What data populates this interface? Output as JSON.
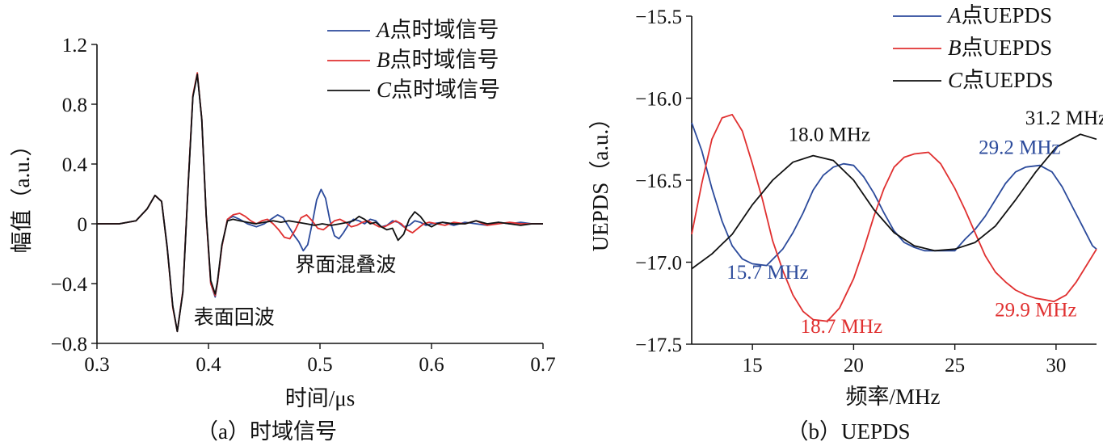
{
  "chart_data": [
    {
      "type": "line",
      "caption": "（a）时域信号",
      "xlabel": "时间/μs",
      "ylabel": "幅值（a.u.）",
      "xlim": [
        0.3,
        0.7
      ],
      "ylim": [
        -0.8,
        1.2
      ],
      "x_ticks": [
        "0.3",
        "0.4",
        "0.5",
        "0.6",
        "0.7"
      ],
      "y_ticks": [
        "−0.8",
        "−0.4",
        "0",
        "0.4",
        "0.8",
        "1.2"
      ],
      "x_tick_values": [
        0.3,
        0.4,
        0.5,
        0.6,
        0.7
      ],
      "y_tick_values": [
        -0.8,
        -0.4,
        0,
        0.4,
        0.8,
        1.2
      ],
      "legend_position": "top-right",
      "series": [
        {
          "letter": "A",
          "suffix": "点时域信号",
          "color": "#2b4a9b",
          "x": [
            0.3,
            0.32,
            0.335,
            0.345,
            0.352,
            0.358,
            0.363,
            0.368,
            0.372,
            0.377,
            0.382,
            0.386,
            0.39,
            0.394,
            0.398,
            0.402,
            0.406,
            0.408,
            0.412,
            0.417,
            0.422,
            0.428,
            0.435,
            0.443,
            0.45,
            0.456,
            0.462,
            0.467,
            0.472,
            0.477,
            0.481,
            0.485,
            0.489,
            0.493,
            0.497,
            0.501,
            0.505,
            0.509,
            0.513,
            0.517,
            0.521,
            0.526,
            0.53,
            0.535,
            0.54,
            0.545,
            0.55,
            0.555,
            0.56,
            0.565,
            0.57,
            0.575,
            0.58,
            0.585,
            0.59,
            0.595,
            0.6,
            0.61,
            0.62,
            0.63,
            0.64,
            0.65,
            0.66,
            0.67,
            0.68,
            0.69,
            0.7
          ],
          "y": [
            0,
            0,
            0.02,
            0.1,
            0.19,
            0.15,
            -0.15,
            -0.55,
            -0.72,
            -0.45,
            0.3,
            0.85,
            1.0,
            0.7,
            0.05,
            -0.4,
            -0.49,
            -0.4,
            -0.15,
            0.03,
            0.05,
            0.03,
            0.0,
            -0.02,
            0.0,
            0.03,
            0.06,
            0.04,
            -0.02,
            -0.08,
            -0.12,
            -0.18,
            -0.14,
            0.0,
            0.16,
            0.23,
            0.17,
            0.02,
            -0.08,
            -0.1,
            -0.06,
            0.0,
            0.03,
            0.02,
            0.0,
            0.03,
            0.02,
            -0.02,
            -0.01,
            0.02,
            0.01,
            -0.02,
            -0.01,
            0.02,
            0.01,
            -0.01,
            0.0,
            0.01,
            -0.01,
            0.01,
            0.0,
            -0.01,
            0.01,
            0.0,
            0.01,
            0.0,
            0.0
          ]
        },
        {
          "letter": "B",
          "suffix": "点时域信号",
          "color": "#e03030",
          "x": [
            0.3,
            0.32,
            0.335,
            0.345,
            0.352,
            0.358,
            0.363,
            0.368,
            0.372,
            0.377,
            0.382,
            0.386,
            0.39,
            0.394,
            0.398,
            0.402,
            0.406,
            0.408,
            0.412,
            0.417,
            0.422,
            0.428,
            0.433,
            0.438,
            0.443,
            0.448,
            0.453,
            0.458,
            0.463,
            0.468,
            0.473,
            0.478,
            0.483,
            0.488,
            0.493,
            0.498,
            0.503,
            0.508,
            0.513,
            0.518,
            0.523,
            0.528,
            0.533,
            0.538,
            0.543,
            0.548,
            0.553,
            0.558,
            0.563,
            0.568,
            0.573,
            0.578,
            0.583,
            0.588,
            0.593,
            0.598,
            0.605,
            0.612,
            0.62,
            0.63,
            0.64,
            0.65,
            0.66,
            0.67,
            0.68,
            0.69,
            0.7
          ],
          "y": [
            0,
            0,
            0.02,
            0.1,
            0.19,
            0.15,
            -0.16,
            -0.56,
            -0.72,
            -0.45,
            0.3,
            0.86,
            1.01,
            0.7,
            0.05,
            -0.4,
            -0.48,
            -0.4,
            -0.15,
            0.03,
            0.06,
            0.07,
            0.05,
            0.02,
            0.0,
            0.02,
            0.03,
            0.0,
            -0.04,
            -0.09,
            -0.1,
            -0.04,
            0.04,
            0.06,
            0.02,
            -0.03,
            -0.04,
            -0.01,
            0.02,
            0.03,
            0.01,
            -0.02,
            -0.01,
            0.01,
            0.02,
            0.0,
            -0.02,
            -0.02,
            0.0,
            0.02,
            0.0,
            -0.04,
            -0.06,
            -0.03,
            0.0,
            0.01,
            0.0,
            -0.01,
            0.01,
            0.0,
            0.02,
            -0.01,
            0.0,
            0.01,
            0.0,
            0.0,
            0.0
          ]
        },
        {
          "letter": "C",
          "suffix": "点时域信号",
          "color": "#111111",
          "x": [
            0.3,
            0.32,
            0.335,
            0.345,
            0.352,
            0.358,
            0.363,
            0.368,
            0.372,
            0.377,
            0.382,
            0.386,
            0.39,
            0.394,
            0.398,
            0.402,
            0.406,
            0.408,
            0.412,
            0.417,
            0.422,
            0.428,
            0.435,
            0.442,
            0.45,
            0.458,
            0.465,
            0.472,
            0.48,
            0.488,
            0.495,
            0.502,
            0.51,
            0.518,
            0.525,
            0.53,
            0.535,
            0.54,
            0.545,
            0.55,
            0.555,
            0.56,
            0.565,
            0.57,
            0.575,
            0.58,
            0.585,
            0.59,
            0.595,
            0.6,
            0.605,
            0.61,
            0.62,
            0.63,
            0.64,
            0.65,
            0.66,
            0.67,
            0.68,
            0.69,
            0.7
          ],
          "y": [
            0,
            0,
            0.02,
            0.1,
            0.19,
            0.15,
            -0.16,
            -0.55,
            -0.72,
            -0.46,
            0.29,
            0.85,
            1.0,
            0.7,
            0.06,
            -0.38,
            -0.47,
            -0.39,
            -0.14,
            0.02,
            0.03,
            0.02,
            0.01,
            0.0,
            0.01,
            0.02,
            0.01,
            0.02,
            0.01,
            0.0,
            -0.01,
            0.0,
            -0.01,
            0.0,
            0.01,
            0.02,
            0.05,
            0.03,
            0.0,
            0.01,
            -0.02,
            -0.04,
            -0.03,
            -0.11,
            -0.07,
            0.03,
            0.08,
            0.05,
            0.0,
            -0.02,
            0.0,
            0.01,
            0.0,
            0.0,
            0.02,
            0.0,
            0.01,
            0.0,
            -0.01,
            0.0,
            0.0
          ]
        }
      ],
      "annotations": [
        {
          "text": "界面混叠波",
          "x": 0.523,
          "y": -0.32
        },
        {
          "text": "表面回波",
          "x": 0.423,
          "y": -0.67
        }
      ]
    },
    {
      "type": "line",
      "caption": "（b）UEPDS",
      "xlabel": "频率/MHz",
      "ylabel": "UEPDS（a.u.）",
      "xlim": [
        12,
        32
      ],
      "ylim": [
        -17.5,
        -15.5
      ],
      "x_ticks": [
        "15",
        "20",
        "25",
        "30"
      ],
      "y_ticks": [
        "−17.5",
        "−17.0",
        "−16.5",
        "−16.0",
        "−15.5"
      ],
      "x_tick_values": [
        15,
        20,
        25,
        30
      ],
      "y_tick_values": [
        -17.5,
        -17.0,
        -16.5,
        -16.0,
        -15.5
      ],
      "legend_position": "top-right",
      "series": [
        {
          "letter": "A",
          "suffix": "点UEPDS",
          "color": "#2b4a9b",
          "x": [
            12,
            12.5,
            13,
            13.5,
            14,
            14.5,
            15,
            15.7,
            16.5,
            17,
            17.5,
            18,
            18.5,
            19,
            19.5,
            20,
            20.5,
            21,
            21.5,
            22,
            22.5,
            23,
            23.5,
            24,
            24.5,
            25,
            25.5,
            26,
            26.5,
            27,
            27.5,
            28,
            28.5,
            29.2,
            29.8,
            30.3,
            30.8,
            31.3,
            31.8,
            32
          ],
          "y": [
            -16.15,
            -16.32,
            -16.55,
            -16.75,
            -16.9,
            -16.98,
            -17.01,
            -17.02,
            -16.92,
            -16.82,
            -16.7,
            -16.56,
            -16.47,
            -16.42,
            -16.4,
            -16.41,
            -16.48,
            -16.58,
            -16.7,
            -16.81,
            -16.88,
            -16.91,
            -16.93,
            -16.93,
            -16.93,
            -16.93,
            -16.86,
            -16.8,
            -16.72,
            -16.62,
            -16.52,
            -16.45,
            -16.42,
            -16.41,
            -16.45,
            -16.54,
            -16.66,
            -16.78,
            -16.9,
            -16.92
          ]
        },
        {
          "letter": "B",
          "suffix": "点UEPDS",
          "color": "#e03030",
          "x": [
            12,
            12.5,
            13,
            13.5,
            14,
            14.5,
            15,
            15.5,
            16,
            16.5,
            17,
            17.5,
            18,
            18.7,
            19.3,
            20,
            20.5,
            21,
            21.5,
            22,
            22.5,
            23,
            23.7,
            24.3,
            25,
            25.5,
            26,
            26.5,
            27,
            27.5,
            28,
            28.5,
            29,
            29.5,
            29.9,
            30.5,
            31,
            31.5,
            32
          ],
          "y": [
            -16.83,
            -16.52,
            -16.25,
            -16.12,
            -16.1,
            -16.2,
            -16.4,
            -16.62,
            -16.87,
            -17.05,
            -17.2,
            -17.3,
            -17.35,
            -17.36,
            -17.28,
            -17.1,
            -16.92,
            -16.72,
            -16.55,
            -16.42,
            -16.36,
            -16.34,
            -16.33,
            -16.4,
            -16.55,
            -16.68,
            -16.82,
            -16.96,
            -17.06,
            -17.12,
            -17.17,
            -17.2,
            -17.22,
            -17.23,
            -17.24,
            -17.2,
            -17.12,
            -17.02,
            -16.92
          ]
        },
        {
          "letter": "C",
          "suffix": "点UEPDS",
          "color": "#111111",
          "x": [
            12,
            13,
            14,
            15,
            16,
            17,
            18,
            19,
            20,
            21,
            22,
            23,
            24,
            25,
            26,
            27,
            28,
            29,
            30,
            31.2,
            32
          ],
          "y": [
            -17.04,
            -16.95,
            -16.83,
            -16.65,
            -16.5,
            -16.39,
            -16.35,
            -16.38,
            -16.5,
            -16.68,
            -16.82,
            -16.9,
            -16.93,
            -16.92,
            -16.88,
            -16.78,
            -16.62,
            -16.45,
            -16.3,
            -16.22,
            -16.25
          ]
        }
      ],
      "annotations": [
        {
          "text": "18.0 MHz",
          "x": 18.8,
          "y": -16.26,
          "color": "#111111"
        },
        {
          "text": "31.2 MHz",
          "x": 30.5,
          "y": -16.16,
          "color": "#111111"
        },
        {
          "text": "29.2 MHz",
          "x": 28.2,
          "y": -16.34,
          "color": "#2b4a9b"
        },
        {
          "text": "15.7 MHz",
          "x": 15.75,
          "y": -17.1,
          "color": "#2b4a9b"
        },
        {
          "text": "18.7 MHz",
          "x": 19.4,
          "y": -17.43,
          "color": "#e03030"
        },
        {
          "text": "29.9 MHz",
          "x": 29.0,
          "y": -17.33,
          "color": "#e03030"
        }
      ]
    }
  ]
}
